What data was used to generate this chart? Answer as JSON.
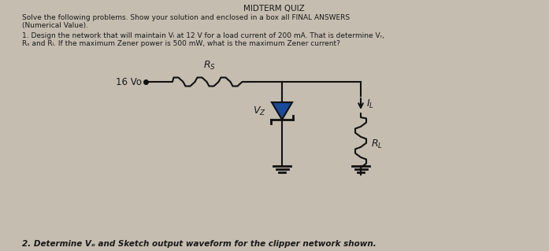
{
  "title": "MIDTERM QUIZ",
  "line1": "Solve the following problems. Show your solution and enclosed in a box all FINAL ANSWERS",
  "line2": "(Numerical Value).",
  "line3a": "1. Design the network that will maintain Vₗ at 12 V for a load current of 200 mA. That is determine Vᵣ,",
  "line3b": "Rₛ and Rₗ. If the maximum Zener power is 500 mW, what is the maximum Zener current?",
  "line4": "2. Determine Vₒ and Sketch output waveform for the clipper network shown.",
  "bg_color": "#c5bdb0",
  "text_color": "#1a1a1a",
  "circuit_color": "#111111",
  "zener_color": "#1a4a9a"
}
